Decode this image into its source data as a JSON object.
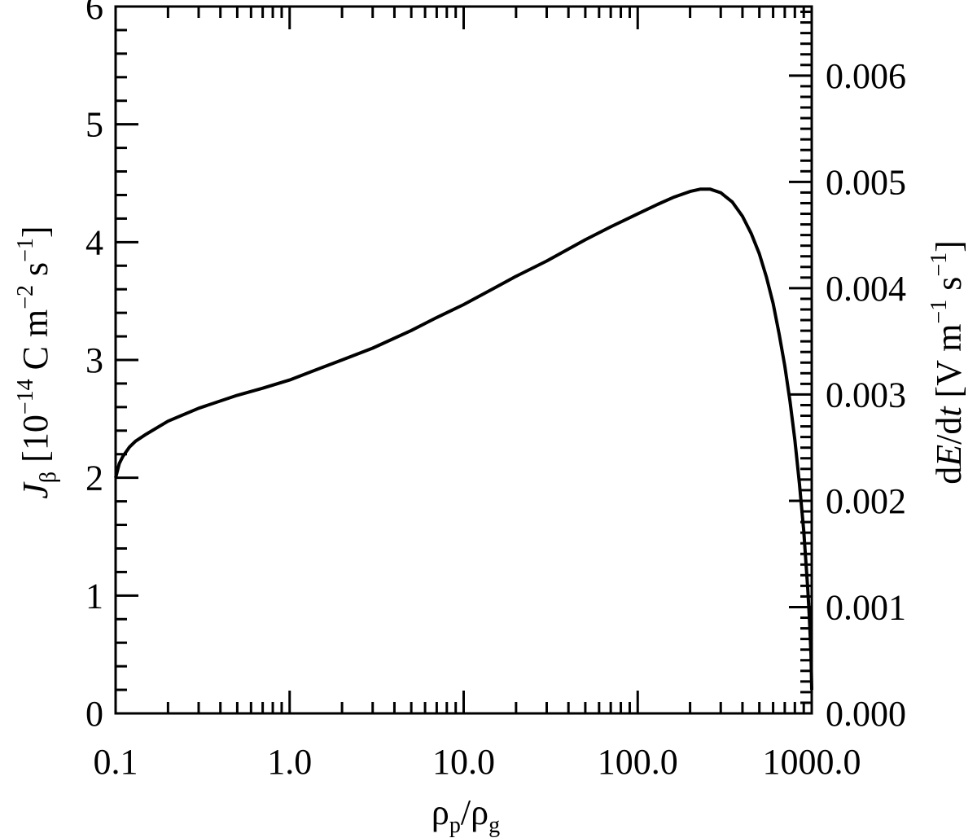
{
  "chart_data": {
    "type": "line",
    "title": "",
    "x_scale": "log",
    "xlim": [
      0.1,
      1000
    ],
    "xticks": [
      "0.1",
      "1.0",
      "10.0",
      "100.0",
      "1000.0"
    ],
    "ylim": [
      0,
      6
    ],
    "yticks": [
      "0",
      "1",
      "2",
      "3",
      "4",
      "5",
      "6"
    ],
    "y2lim": [
      0,
      0.00665
    ],
    "y2ticks": [
      "0.000",
      "0.001",
      "0.002",
      "0.003",
      "0.004",
      "0.005",
      "0.006"
    ],
    "xlabel": {
      "main": "ρ",
      "sub1": "p",
      "slash": "/ρ",
      "sub2": "g"
    },
    "ylabel": {
      "main": "J",
      "sub": "β",
      "bracket": " [10",
      "exp": "−14",
      "unit1": " C m",
      "exp2": "−2",
      "unit2": " s",
      "exp3": "−1",
      "close": "]"
    },
    "y2label": {
      "d1": "d",
      "E": "E",
      "slash": "/d",
      "t": "t",
      "bracket": " [V m",
      "exp1": "−1",
      "s": " s",
      "exp2": "−1",
      "close": "]"
    },
    "grid": false,
    "series": [
      {
        "x": [
          0.1,
          0.105,
          0.11,
          0.12,
          0.13,
          0.15,
          0.2,
          0.3,
          0.5,
          0.7,
          1.0,
          1.5,
          2.0,
          3.0,
          5.0,
          7.0,
          10.0,
          15.0,
          20.0,
          30.0,
          50.0,
          70.0,
          100.0,
          130.0,
          160.0,
          200.0,
          230.0,
          260.0,
          300.0,
          350.0,
          400.0,
          450.0,
          500.0,
          550.0,
          600.0,
          650.0,
          700.0,
          750.0,
          800.0,
          850.0,
          900.0,
          950.0,
          970.0,
          990.0,
          1000.0
        ],
        "y": [
          2.0,
          2.12,
          2.18,
          2.26,
          2.31,
          2.37,
          2.48,
          2.59,
          2.7,
          2.76,
          2.83,
          2.93,
          3.0,
          3.1,
          3.25,
          3.36,
          3.47,
          3.61,
          3.71,
          3.84,
          4.02,
          4.13,
          4.24,
          4.32,
          4.38,
          4.43,
          4.45,
          4.45,
          4.42,
          4.34,
          4.22,
          4.07,
          3.9,
          3.7,
          3.48,
          3.22,
          2.95,
          2.65,
          2.32,
          1.95,
          1.55,
          1.05,
          0.8,
          0.5,
          0.2
        ]
      }
    ]
  }
}
